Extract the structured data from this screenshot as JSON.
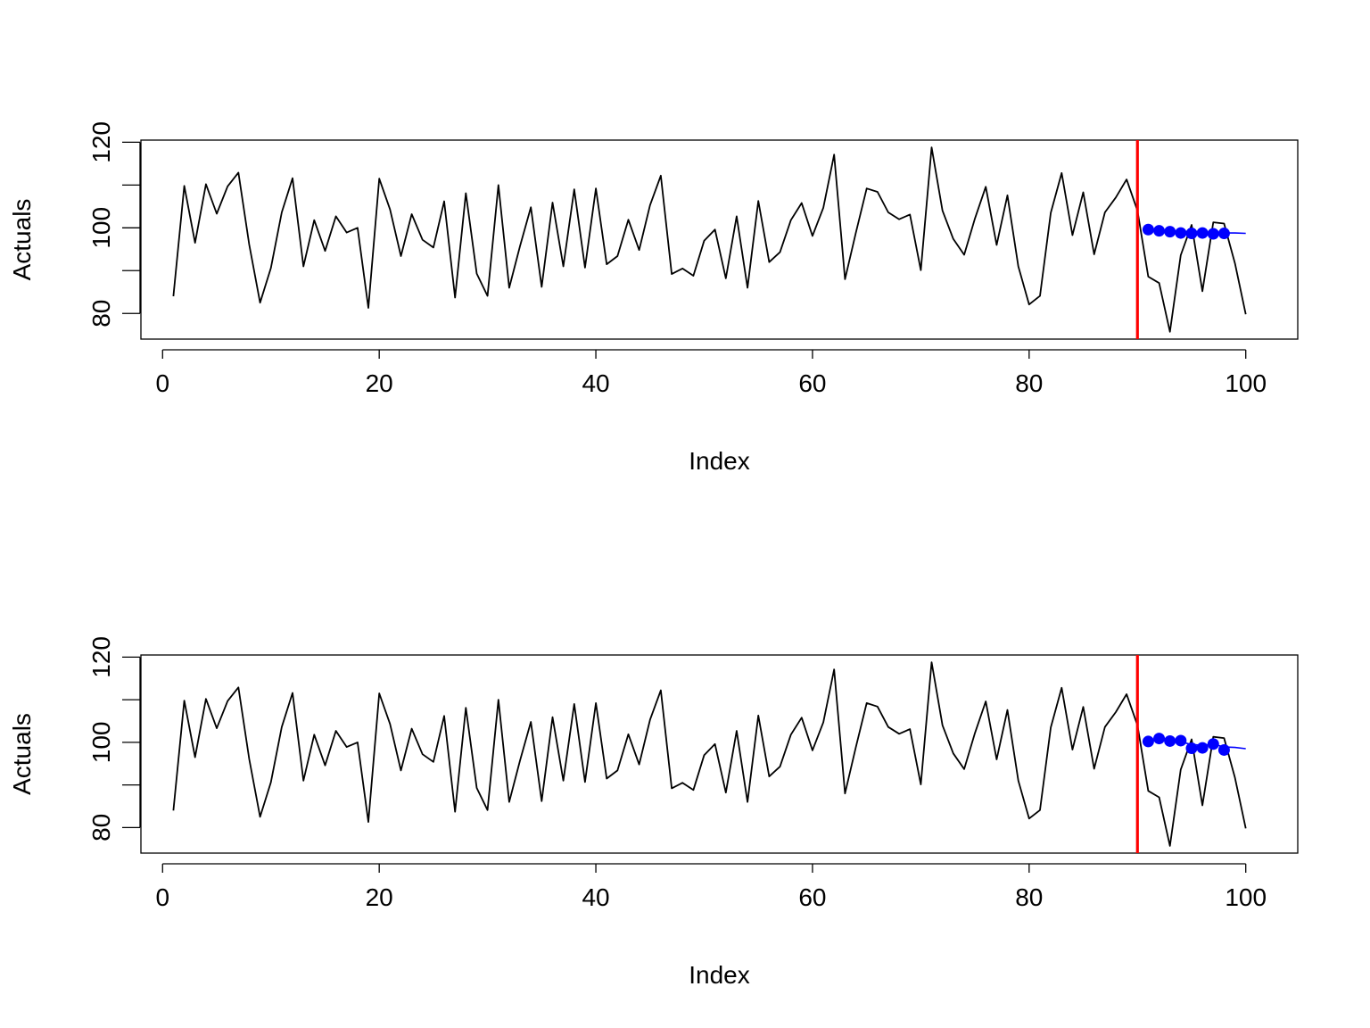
{
  "chart_data": [
    {
      "type": "line",
      "xlabel": "Index",
      "ylabel": "Actuals",
      "xlim": [
        -2,
        104.8
      ],
      "ylim": [
        74,
        120.5
      ],
      "x_ticks": [
        0,
        20,
        40,
        60,
        80,
        100
      ],
      "y_ticks": [
        80,
        100,
        120
      ],
      "grid": false,
      "series": [
        {
          "role": "actuals",
          "color": "#000000",
          "x": [
            1,
            2,
            3,
            4,
            5,
            6,
            7,
            8,
            9,
            10,
            11,
            12,
            13,
            14,
            15,
            16,
            17,
            18,
            19,
            20,
            21,
            22,
            23,
            24,
            25,
            26,
            27,
            28,
            29,
            30,
            31,
            32,
            33,
            34,
            35,
            36,
            37,
            38,
            39,
            40,
            41,
            42,
            43,
            44,
            45,
            46,
            47,
            48,
            49,
            50,
            51,
            52,
            53,
            54,
            55,
            56,
            57,
            58,
            59,
            60,
            61,
            62,
            63,
            64,
            65,
            66,
            67,
            68,
            69,
            70,
            71,
            72,
            73,
            74,
            75,
            76,
            77,
            78,
            79,
            80,
            81,
            82,
            83,
            84,
            85,
            86,
            87,
            88,
            89,
            90,
            91,
            92,
            93,
            94,
            95,
            96,
            97,
            98,
            99,
            100
          ],
          "values": [
            84,
            109.8,
            96.5,
            110.2,
            103.3,
            109.7,
            112.9,
            96.1,
            82.5,
            90.6,
            103.6,
            111.6,
            91,
            101.8,
            94.6,
            102.7,
            98.9,
            100,
            81.3,
            111.5,
            104.3,
            93.4,
            103.2,
            97.2,
            95.4,
            106.2,
            83.7,
            108.1,
            89.3,
            84.1,
            110,
            86,
            95.7,
            104.8,
            86.2,
            105.9,
            91,
            109,
            90.7,
            109.2,
            91.5,
            93.4,
            101.9,
            94.8,
            105.3,
            112.2,
            89.2,
            90.5,
            88.8,
            97,
            99.6,
            88.2,
            102.7,
            86,
            106.3,
            92,
            94.3,
            101.8,
            105.8,
            98.1,
            104.7,
            117.1,
            88,
            98.8,
            109.2,
            108.4,
            103.6,
            102,
            103.1,
            90.1,
            118.8,
            104,
            97.4,
            93.7,
            102.2,
            109.6,
            96,
            107.6,
            91,
            82.1,
            84.1,
            103.5,
            112.8,
            98.3,
            108.3,
            93.8,
            103.6,
            107.1,
            111.3,
            104,
            88.6,
            87.1,
            75.7,
            93.6,
            100.7,
            85.2,
            101.3,
            101,
            91.7,
            79.8
          ]
        },
        {
          "role": "forecast-line",
          "color": "#0000ff",
          "x": [
            91,
            92,
            93,
            94,
            95,
            96,
            97,
            98,
            99,
            100
          ],
          "values": [
            99.6,
            99.4,
            99.2,
            99,
            98.9,
            98.8,
            98.8,
            98.8,
            98.8,
            98.7
          ]
        },
        {
          "role": "forecast-points",
          "color": "#0000ff",
          "x": [
            91,
            92,
            93,
            94,
            95,
            96,
            97,
            98
          ],
          "values": [
            99.6,
            99.3,
            99.1,
            98.8,
            98.7,
            98.8,
            98.6,
            98.7
          ]
        }
      ],
      "vline": {
        "x": 90,
        "color": "#ff0000"
      }
    },
    {
      "type": "line",
      "xlabel": "Index",
      "ylabel": "Actuals",
      "xlim": [
        -2,
        104.8
      ],
      "ylim": [
        74,
        120.5
      ],
      "x_ticks": [
        0,
        20,
        40,
        60,
        80,
        100
      ],
      "y_ticks": [
        80,
        100,
        120
      ],
      "grid": false,
      "series": [
        {
          "role": "actuals",
          "color": "#000000",
          "x": [
            1,
            2,
            3,
            4,
            5,
            6,
            7,
            8,
            9,
            10,
            11,
            12,
            13,
            14,
            15,
            16,
            17,
            18,
            19,
            20,
            21,
            22,
            23,
            24,
            25,
            26,
            27,
            28,
            29,
            30,
            31,
            32,
            33,
            34,
            35,
            36,
            37,
            38,
            39,
            40,
            41,
            42,
            43,
            44,
            45,
            46,
            47,
            48,
            49,
            50,
            51,
            52,
            53,
            54,
            55,
            56,
            57,
            58,
            59,
            60,
            61,
            62,
            63,
            64,
            65,
            66,
            67,
            68,
            69,
            70,
            71,
            72,
            73,
            74,
            75,
            76,
            77,
            78,
            79,
            80,
            81,
            82,
            83,
            84,
            85,
            86,
            87,
            88,
            89,
            90,
            91,
            92,
            93,
            94,
            95,
            96,
            97,
            98,
            99,
            100
          ],
          "values": [
            84,
            109.8,
            96.5,
            110.2,
            103.3,
            109.7,
            112.9,
            96.1,
            82.5,
            90.6,
            103.6,
            111.6,
            91,
            101.8,
            94.6,
            102.7,
            98.9,
            100,
            81.3,
            111.5,
            104.3,
            93.4,
            103.2,
            97.2,
            95.4,
            106.2,
            83.7,
            108.1,
            89.3,
            84.1,
            110,
            86,
            95.7,
            104.8,
            86.2,
            105.9,
            91,
            109,
            90.7,
            109.2,
            91.5,
            93.4,
            101.9,
            94.8,
            105.3,
            112.2,
            89.2,
            90.5,
            88.8,
            97,
            99.6,
            88.2,
            102.7,
            86,
            106.3,
            92,
            94.3,
            101.8,
            105.8,
            98.1,
            104.7,
            117.1,
            88,
            98.8,
            109.2,
            108.4,
            103.6,
            102,
            103.1,
            90.1,
            118.8,
            104,
            97.4,
            93.7,
            102.2,
            109.6,
            96,
            107.6,
            91,
            82.1,
            84.1,
            103.5,
            112.8,
            98.3,
            108.3,
            93.8,
            103.6,
            107.1,
            111.3,
            104,
            88.6,
            87.1,
            75.7,
            93.6,
            100.7,
            85.2,
            101.3,
            101,
            91.7,
            79.8
          ]
        },
        {
          "role": "forecast-line",
          "color": "#0000ff",
          "x": [
            91,
            92,
            93,
            94,
            95,
            96,
            97,
            98,
            99,
            100
          ],
          "values": [
            100.3,
            100.6,
            100.2,
            100.1,
            99.5,
            99.3,
            99.6,
            98.9,
            98.8,
            98.5
          ]
        },
        {
          "role": "forecast-points",
          "color": "#0000ff",
          "x": [
            91,
            92,
            93,
            94,
            95,
            96,
            97,
            98
          ],
          "values": [
            100.2,
            100.9,
            100.3,
            100.4,
            98.6,
            98.7,
            99.6,
            98.2
          ]
        }
      ],
      "vline": {
        "x": 90,
        "color": "#ff0000"
      }
    }
  ]
}
